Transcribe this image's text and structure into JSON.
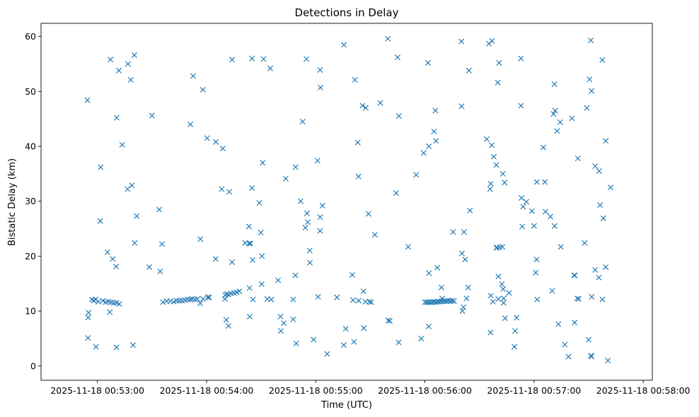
{
  "chart_data": {
    "type": "scatter",
    "title": "Detections in Delay",
    "xlabel": "Time (UTC)",
    "ylabel": "Bistatic Delay (km)",
    "marker": "x",
    "color": "#1f77b4",
    "x_unit": "seconds since 2025-11-18 00:53:00",
    "xlim": [
      -31,
      305
    ],
    "ylim": [
      -2.6,
      62.4
    ],
    "xticks": [
      0,
      60,
      120,
      180,
      240,
      300
    ],
    "xtick_labels": [
      "2025-11-18 00:53:00",
      "2025-11-18 00:54:00",
      "2025-11-18 00:55:00",
      "2025-11-18 00:56:00",
      "2025-11-18 00:57:00",
      "2025-11-18 00:58:00"
    ],
    "yticks": [
      0,
      10,
      20,
      30,
      40,
      50,
      60
    ],
    "ytick_labels": [
      "0",
      "10",
      "20",
      "30",
      "40",
      "50",
      "60"
    ],
    "points": [
      [
        -5.5,
        48.4
      ],
      [
        -4.9,
        9.7
      ],
      [
        -5.1,
        8.8
      ],
      [
        -5.2,
        5.1
      ],
      [
        -3,
        12.1
      ],
      [
        -2,
        11.9
      ],
      [
        -1,
        12.1
      ],
      [
        0.5,
        11.7
      ],
      [
        -0.8,
        3.5
      ],
      [
        3,
        11.9
      ],
      [
        4.5,
        11.6
      ],
      [
        6,
        11.7
      ],
      [
        7.5,
        11.6
      ],
      [
        9,
        11.5
      ],
      [
        10.5,
        11.5
      ],
      [
        12,
        11.3
      ],
      [
        1.8,
        36.2
      ],
      [
        1.6,
        26.4
      ],
      [
        5.5,
        20.7
      ],
      [
        6.8,
        9.8
      ],
      [
        8.4,
        19.5
      ],
      [
        10.3,
        18.1
      ],
      [
        10.6,
        45.2
      ],
      [
        10.5,
        3.4
      ],
      [
        7.2,
        55.8
      ],
      [
        11.8,
        53.8
      ],
      [
        13.6,
        40.3
      ],
      [
        16.5,
        32.2
      ],
      [
        16.8,
        55
      ],
      [
        18.3,
        52.1
      ],
      [
        18.9,
        32.9
      ],
      [
        19.6,
        3.8
      ],
      [
        20.3,
        56.6
      ],
      [
        21.6,
        27.3
      ],
      [
        20.5,
        22.4
      ],
      [
        28.5,
        18
      ],
      [
        30,
        45.6
      ],
      [
        34,
        28.5
      ],
      [
        34.5,
        17.2
      ],
      [
        35.5,
        22.2
      ],
      [
        36,
        11.6
      ],
      [
        38,
        11.8
      ],
      [
        40,
        11.8
      ],
      [
        42,
        11.7
      ],
      [
        43.5,
        11.9
      ],
      [
        45,
        11.9
      ],
      [
        46.5,
        11.9
      ],
      [
        48,
        12
      ],
      [
        49.5,
        12.1
      ],
      [
        51,
        12.1
      ],
      [
        52,
        12.2
      ],
      [
        53.5,
        12.1
      ],
      [
        55,
        12.2
      ],
      [
        56.5,
        11.4
      ],
      [
        58,
        12.2
      ],
      [
        51.1,
        44
      ],
      [
        52.6,
        52.8
      ],
      [
        56.6,
        23.1
      ],
      [
        57.9,
        50.3
      ],
      [
        60.3,
        41.5
      ],
      [
        60.6,
        12.5
      ],
      [
        61.4,
        12.5
      ],
      [
        65,
        19.5
      ],
      [
        65.1,
        40.8
      ],
      [
        68.9,
        39.6
      ],
      [
        68.3,
        32.2
      ],
      [
        70.2,
        12.9
      ],
      [
        70.1,
        12.2
      ],
      [
        70.8,
        8.4
      ],
      [
        72,
        7.3
      ],
      [
        72.5,
        31.7
      ],
      [
        74,
        18.9
      ],
      [
        74,
        55.8
      ],
      [
        71,
        13.1
      ],
      [
        72,
        13
      ],
      [
        73.5,
        13.2
      ],
      [
        75,
        13.3
      ],
      [
        76.5,
        13.4
      ],
      [
        78,
        13.6
      ],
      [
        81.2,
        22.4
      ],
      [
        83.3,
        25.4
      ],
      [
        83.4,
        22.3
      ],
      [
        84.1,
        22.3
      ],
      [
        83.6,
        14.2
      ],
      [
        83.7,
        9
      ],
      [
        84.9,
        32.4
      ],
      [
        85.3,
        19.3
      ],
      [
        85.5,
        12.1
      ],
      [
        85,
        56
      ],
      [
        89,
        29.7
      ],
      [
        89.8,
        24.3
      ],
      [
        90.8,
        37
      ],
      [
        90.4,
        20
      ],
      [
        90.3,
        14.9
      ],
      [
        91.3,
        55.9
      ],
      [
        93.3,
        12.2
      ],
      [
        95,
        54.2
      ],
      [
        95.6,
        12.1
      ],
      [
        99.3,
        15.6
      ],
      [
        100.6,
        9
      ],
      [
        100.8,
        6.4
      ],
      [
        102.4,
        7.8
      ],
      [
        103.5,
        34.1
      ],
      [
        107.6,
        12.1
      ],
      [
        107.6,
        8.5
      ],
      [
        108.8,
        16.5
      ],
      [
        108.9,
        36.2
      ],
      [
        109.3,
        4.1
      ],
      [
        111.7,
        30
      ],
      [
        112.8,
        44.5
      ],
      [
        114.3,
        25.2
      ],
      [
        115.2,
        27.8
      ],
      [
        115.6,
        26.2
      ],
      [
        114.9,
        55.9
      ],
      [
        116.7,
        21
      ],
      [
        116.8,
        18.8
      ],
      [
        118.8,
        4.8
      ],
      [
        121,
        37.4
      ],
      [
        121.3,
        12.6
      ],
      [
        122.4,
        27.1
      ],
      [
        122.4,
        24.6
      ],
      [
        122.6,
        50.7
      ],
      [
        122.4,
        53.9
      ],
      [
        123.7,
        29.2
      ],
      [
        126.3,
        2.2
      ],
      [
        131.6,
        12.5
      ],
      [
        135.5,
        58.5
      ],
      [
        136.5,
        6.8
      ],
      [
        135.4,
        3.8
      ],
      [
        140.1,
        16.6
      ],
      [
        140.5,
        12
      ],
      [
        141,
        4.4
      ],
      [
        141.5,
        52.1
      ],
      [
        143.1,
        40.7
      ],
      [
        143.5,
        34.5
      ],
      [
        143.6,
        11.9
      ],
      [
        145.7,
        47.4
      ],
      [
        146.4,
        6.9
      ],
      [
        146.2,
        13.6
      ],
      [
        147.5,
        47
      ],
      [
        147.3,
        11.7
      ],
      [
        149,
        27.7
      ],
      [
        149.5,
        11.7
      ],
      [
        150.5,
        11.6
      ],
      [
        152.5,
        23.9
      ],
      [
        155.5,
        47.9
      ],
      [
        159.6,
        59.6
      ],
      [
        159.9,
        8.3
      ],
      [
        160.7,
        8.2
      ],
      [
        164.2,
        31.5
      ],
      [
        165,
        56.2
      ],
      [
        165.7,
        45.5
      ],
      [
        165.6,
        4.3
      ],
      [
        170.8,
        21.7
      ],
      [
        175.2,
        34.8
      ],
      [
        178,
        5
      ],
      [
        179.3,
        38.8
      ],
      [
        180,
        11.6
      ],
      [
        181,
        11.6
      ],
      [
        182,
        11.6
      ],
      [
        183,
        11.6
      ],
      [
        184,
        11.6
      ],
      [
        185,
        11.7
      ],
      [
        186,
        11.6
      ],
      [
        187,
        11.7
      ],
      [
        188,
        11.7
      ],
      [
        189,
        11.8
      ],
      [
        190,
        11.8
      ],
      [
        191,
        11.8
      ],
      [
        192,
        11.8
      ],
      [
        193,
        11.9
      ],
      [
        194,
        11.8
      ],
      [
        195,
        11.9
      ],
      [
        196,
        11.8
      ],
      [
        181.7,
        55.2
      ],
      [
        182.2,
        40
      ],
      [
        182.2,
        16.9
      ],
      [
        182.1,
        7.2
      ],
      [
        185,
        42.7
      ],
      [
        185.8,
        46.5
      ],
      [
        186.1,
        41
      ],
      [
        186.8,
        17.9
      ],
      [
        189.1,
        14.3
      ],
      [
        189.5,
        12.3
      ],
      [
        195.5,
        24.4
      ],
      [
        200.1,
        59.1
      ],
      [
        200.2,
        47.3
      ],
      [
        200.4,
        20.5
      ],
      [
        200.6,
        10
      ],
      [
        201.5,
        24.4
      ],
      [
        201.2,
        10.7
      ],
      [
        202.1,
        19.4
      ],
      [
        202.9,
        12.3
      ],
      [
        203.8,
        14.3
      ],
      [
        204.2,
        53.8
      ],
      [
        204.8,
        28.3
      ],
      [
        214,
        41.3
      ],
      [
        215.8,
        32.2
      ],
      [
        215.2,
        58.7
      ],
      [
        216.2,
        33.2
      ],
      [
        216.9,
        59.2
      ],
      [
        216.7,
        40.2
      ],
      [
        216.2,
        12.8
      ],
      [
        216.1,
        6.1
      ],
      [
        217.9,
        38.1
      ],
      [
        217.4,
        11.7
      ],
      [
        219.3,
        36.6
      ],
      [
        219.5,
        21.6
      ],
      [
        219.4,
        21.5
      ],
      [
        220.1,
        51.6
      ],
      [
        220.4,
        16.3
      ],
      [
        220.3,
        12.2
      ],
      [
        220.8,
        55.2
      ],
      [
        221.1,
        21.6
      ],
      [
        222.6,
        21.7
      ],
      [
        222.3,
        14.9
      ],
      [
        222.8,
        35
      ],
      [
        223.8,
        33.4
      ],
      [
        223,
        14
      ],
      [
        223.3,
        11.5
      ],
      [
        223.3,
        12.3
      ],
      [
        224.1,
        8.7
      ],
      [
        226.3,
        13.3
      ],
      [
        229.2,
        3.5
      ],
      [
        229.6,
        6.4
      ],
      [
        230.4,
        8.8
      ],
      [
        232.8,
        56
      ],
      [
        232.8,
        47.4
      ],
      [
        233.1,
        30.6
      ],
      [
        233.5,
        25.4
      ],
      [
        234,
        29
      ],
      [
        235.8,
        29.9
      ],
      [
        238.8,
        28.2
      ],
      [
        240,
        25.5
      ],
      [
        240.9,
        17
      ],
      [
        241.4,
        19.4
      ],
      [
        241.5,
        33.5
      ],
      [
        241.7,
        12.1
      ],
      [
        245.1,
        39.8
      ],
      [
        245.9,
        33.5
      ],
      [
        246.3,
        28.1
      ],
      [
        249,
        27.2
      ],
      [
        250,
        13.7
      ],
      [
        250.7,
        45.9
      ],
      [
        251.2,
        51.3
      ],
      [
        251.3,
        25.5
      ],
      [
        251.6,
        46.5
      ],
      [
        252.7,
        42.8
      ],
      [
        253.4,
        7.6
      ],
      [
        254.4,
        44.4
      ],
      [
        254.7,
        21.7
      ],
      [
        256.9,
        3.9
      ],
      [
        258.9,
        1.7
      ],
      [
        260.8,
        45.1
      ],
      [
        262.1,
        16.5
      ],
      [
        262.4,
        16.5
      ],
      [
        262.3,
        7.9
      ],
      [
        263.8,
        12.3
      ],
      [
        264.1,
        37.8
      ],
      [
        264.5,
        12.2
      ],
      [
        267.8,
        22.4
      ],
      [
        269,
        47
      ],
      [
        270,
        4.8
      ],
      [
        270.5,
        52.2
      ],
      [
        271.2,
        59.3
      ],
      [
        271.3,
        1.9
      ],
      [
        271.6,
        50.1
      ],
      [
        271.6,
        1.7
      ],
      [
        271.7,
        12.6
      ],
      [
        273.6,
        36.4
      ],
      [
        273.6,
        17.5
      ],
      [
        275.8,
        35.5
      ],
      [
        275.6,
        16.1
      ],
      [
        276.3,
        29.3
      ],
      [
        277.5,
        55.7
      ],
      [
        277.6,
        12.1
      ],
      [
        278.1,
        26.9
      ],
      [
        279.4,
        41
      ],
      [
        279.4,
        18
      ],
      [
        280.6,
        1
      ],
      [
        282.1,
        32.5
      ]
    ]
  }
}
